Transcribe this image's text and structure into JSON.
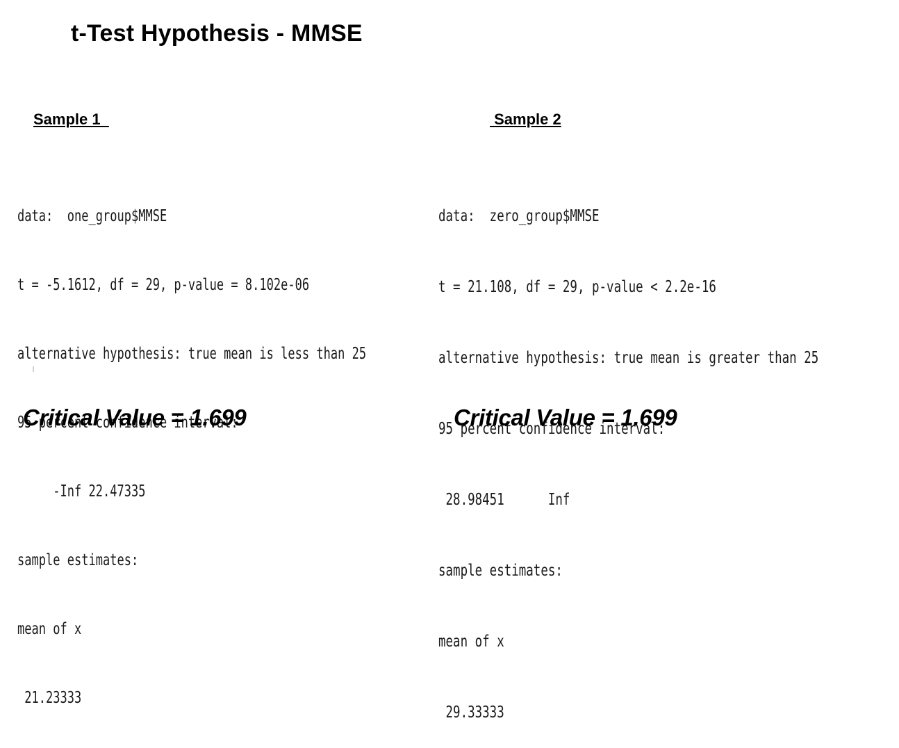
{
  "title": "t-Test Hypothesis - MMSE",
  "samples": [
    {
      "heading": "Sample 1  ",
      "output_lines": [
        "data:  one_group$MMSE",
        "t = -5.1612, df = 29, p-value = 8.102e-06",
        "alternative hypothesis: true mean is less than 25",
        "95 percent confidence interval:",
        "     -Inf 22.47335",
        "sample estimates:",
        "mean of x",
        " 21.23333"
      ],
      "critical_value": "Critical Value = 1.699"
    },
    {
      "heading": " Sample 2",
      "output_lines": [
        "data:  zero_group$MMSE",
        "t = 21.108, df = 29, p-value < 2.2e-16",
        "alternative hypothesis: true mean is greater than 25",
        "95 percent confidence interval:",
        " 28.98451      Inf",
        "sample estimates:",
        "mean of x",
        " 29.33333"
      ],
      "critical_value": "Critical Value = 1.699"
    }
  ]
}
